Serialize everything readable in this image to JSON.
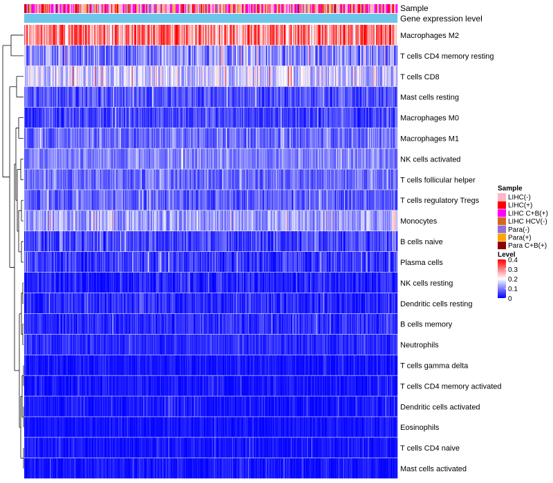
{
  "chart_data": {
    "type": "heatmap",
    "title": "",
    "column_annotations": [
      "Sample",
      "Gene expression level"
    ],
    "rows": [
      {
        "label": "Macrophages M2",
        "mean": 0.3,
        "spread": 0.12
      },
      {
        "label": "T cells CD4 memory resting",
        "mean": 0.1,
        "spread": 0.08
      },
      {
        "label": "T cells CD8",
        "mean": 0.16,
        "spread": 0.08
      },
      {
        "label": "Mast cells resting",
        "mean": 0.06,
        "spread": 0.05
      },
      {
        "label": "Macrophages M0",
        "mean": 0.05,
        "spread": 0.05
      },
      {
        "label": "Macrophages M1",
        "mean": 0.08,
        "spread": 0.05
      },
      {
        "label": "NK cells activated",
        "mean": 0.1,
        "spread": 0.05
      },
      {
        "label": "T cells follicular helper",
        "mean": 0.08,
        "spread": 0.05
      },
      {
        "label": "T cells regulatory  Tregs",
        "mean": 0.07,
        "spread": 0.05
      },
      {
        "label": "Monocytes",
        "mean": 0.12,
        "spread": 0.06
      },
      {
        "label": "B cells naive",
        "mean": 0.05,
        "spread": 0.05
      },
      {
        "label": "Plasma cells",
        "mean": 0.04,
        "spread": 0.05
      },
      {
        "label": "NK cells resting",
        "mean": 0.02,
        "spread": 0.04
      },
      {
        "label": "Dendritic cells resting",
        "mean": 0.03,
        "spread": 0.04
      },
      {
        "label": "B cells memory",
        "mean": 0.03,
        "spread": 0.04
      },
      {
        "label": "Neutrophils",
        "mean": 0.03,
        "spread": 0.03
      },
      {
        "label": "T cells gamma delta",
        "mean": 0.01,
        "spread": 0.03
      },
      {
        "label": "T cells CD4 memory activated",
        "mean": 0.01,
        "spread": 0.03
      },
      {
        "label": "Dendritic cells activated",
        "mean": 0.01,
        "spread": 0.03
      },
      {
        "label": "Eosinophils",
        "mean": 0.01,
        "spread": 0.02
      },
      {
        "label": "T cells CD4 naive",
        "mean": 0.01,
        "spread": 0.03
      },
      {
        "label": "Mast cells activated",
        "mean": 0.01,
        "spread": 0.03
      }
    ],
    "column_count": 420,
    "value_range": [
      0,
      0.4
    ],
    "color_scale": [
      "#0000ff",
      "#ffffff",
      "#ff0000"
    ],
    "annotation_colors": {
      "gene_expression_level": "#6ec5ea"
    },
    "legends": [
      {
        "title": "Sample",
        "entries": [
          {
            "label": "LIHC(-)",
            "color": "#ffb6c8"
          },
          {
            "label": "LIHC(+)",
            "color": "#ff0000"
          },
          {
            "label": "LIHC C+B(+)",
            "color": "#ff00ff"
          },
          {
            "label": "LIHC HCV(-)",
            "color": "#d2691e"
          },
          {
            "label": "Para(-)",
            "color": "#9370db"
          },
          {
            "label": "Para(+)",
            "color": "#ffa500"
          },
          {
            "label": "Para C+B(+)",
            "color": "#8b0000"
          }
        ]
      },
      {
        "title": "Level",
        "ticks": [
          {
            "label": "0.4",
            "value": 0.4
          },
          {
            "label": "0.3",
            "value": 0.3
          },
          {
            "label": "0.2",
            "value": 0.2
          },
          {
            "label": "0.1",
            "value": 0.1
          },
          {
            "label": "0",
            "value": 0.0
          }
        ]
      }
    ]
  }
}
